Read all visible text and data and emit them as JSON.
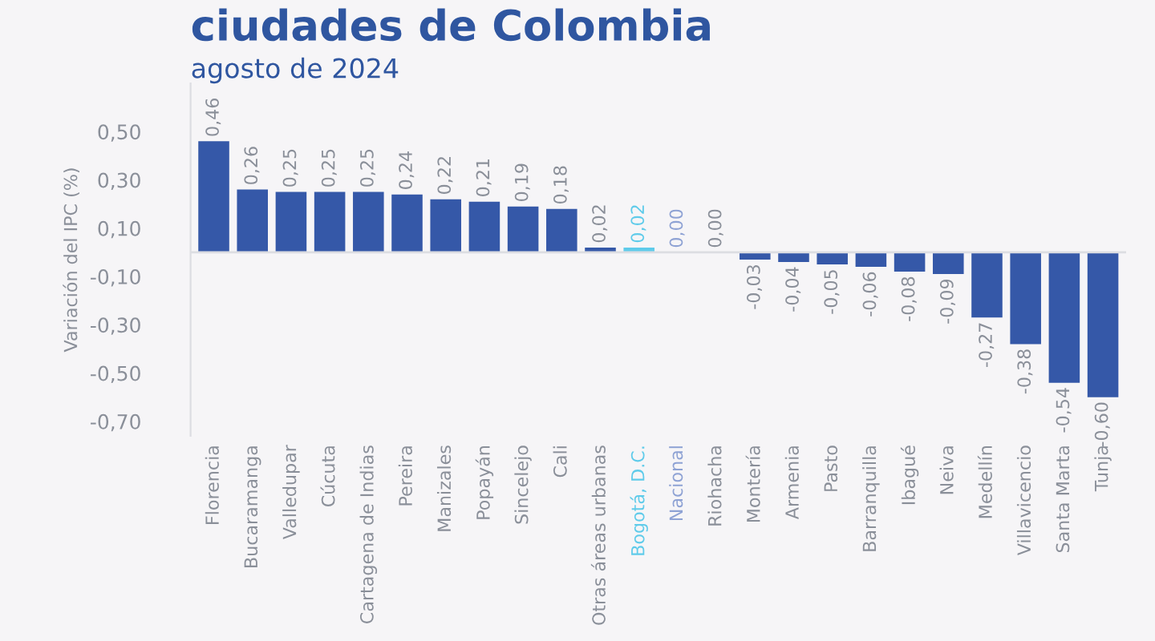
{
  "chart_data": {
    "type": "bar",
    "title": "ciudades de Colombia",
    "subtitle": "agosto de 2024",
    "ylabel": "Variación del IPC (%)",
    "categories": [
      "Florencia",
      "Bucaramanga",
      "Valledupar",
      "Cúcuta",
      "Cartagena de Indias",
      "Pereira",
      "Manizales",
      "Popayán",
      "Sincelejo",
      "Cali",
      "Otras áreas urbanas",
      "Bogotá, D.C.",
      "Nacional",
      "Riohacha",
      "Montería",
      "Armenia",
      "Pasto",
      "Barranquilla",
      "Ibagué",
      "Neiva",
      "Medellín",
      "Villavicencio",
      "Santa Marta",
      "Tunja"
    ],
    "series": [
      {
        "color": "#3558a8",
        "values": [
          0.46,
          0.26,
          0.25,
          0.25,
          0.25,
          0.24,
          0.22,
          0.21,
          0.19,
          0.18,
          0.02,
          0.02,
          0.0,
          0.0,
          -0.03,
          -0.04,
          -0.05,
          -0.06,
          -0.08,
          -0.09,
          -0.27,
          -0.38,
          -0.54,
          -0.6
        ],
        "colors": [
          "#3558a8",
          "#3558a8",
          "#3558a8",
          "#3558a8",
          "#3558a8",
          "#3558a8",
          "#3558a8",
          "#3558a8",
          "#3558a8",
          "#3558a8",
          "#3558a8",
          "#5fcbea",
          "#8ea2d4",
          "#3558a8",
          "#3558a8",
          "#3558a8",
          "#3558a8",
          "#3558a8",
          "#3558a8",
          "#3558a8",
          "#3558a8",
          "#3558a8",
          "#3558a8",
          "#3558a8"
        ],
        "value_labels": [
          "0,46",
          "0,26",
          "0,25",
          "0,25",
          "0,25",
          "0,24",
          "0,22",
          "0,21",
          "0,19",
          "0,18",
          "0,02",
          "0,02",
          "0,00",
          "0,00",
          "-0,03",
          "-0,04",
          "-0,05",
          "-0,06",
          "-0,08",
          "-0,09",
          "-0,27",
          "-0,38",
          "-0,54",
          "-0,60"
        ]
      }
    ],
    "ylim": [
      -0.76,
      0.7
    ],
    "yticks": [
      {
        "value": 0.5,
        "label": "0,50"
      },
      {
        "value": 0.3,
        "label": "0,30"
      },
      {
        "value": 0.1,
        "label": "0,10"
      },
      {
        "value": -0.1,
        "label": "-0,10"
      },
      {
        "value": -0.3,
        "label": "-0,30"
      },
      {
        "value": -0.5,
        "label": "-0,50"
      },
      {
        "value": -0.7,
        "label": "-0,70"
      }
    ],
    "grid": false,
    "legend": false
  }
}
